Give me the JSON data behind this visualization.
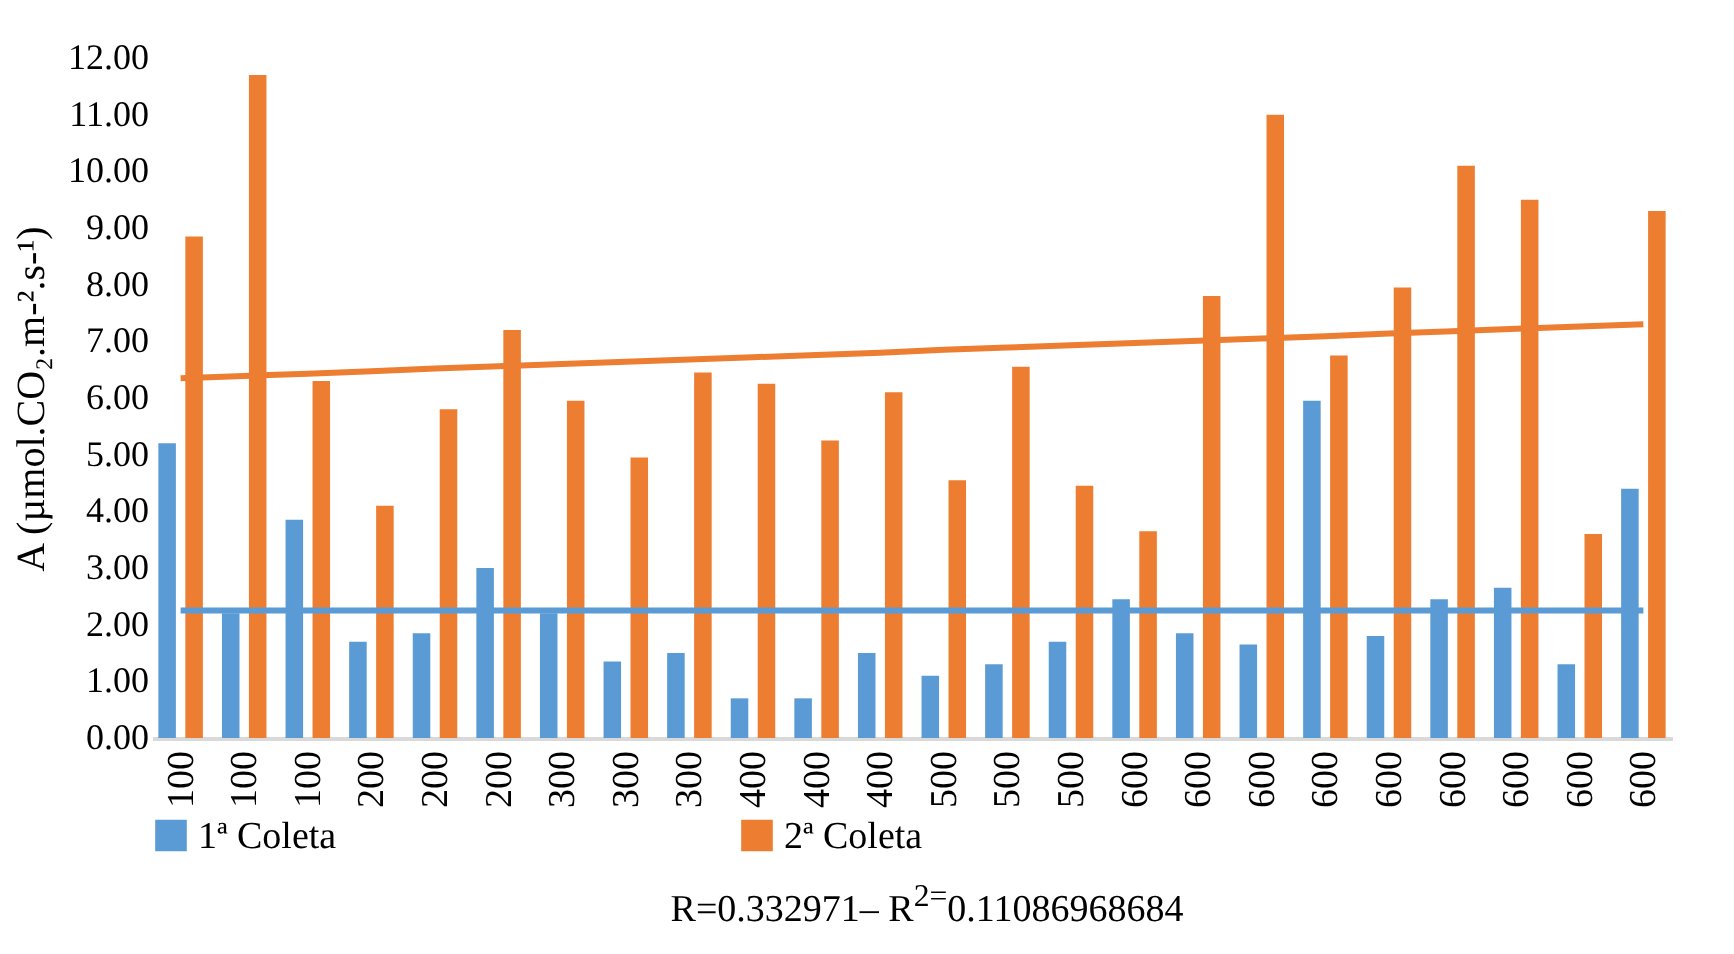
{
  "chart_data": {
    "type": "bar",
    "ylabel": "A (µmol.CO₂.m-².s-¹)",
    "categories": [
      "100",
      "100",
      "100",
      "200",
      "200",
      "200",
      "300",
      "300",
      "300",
      "400",
      "400",
      "400",
      "500",
      "500",
      "500",
      "600",
      "600",
      "600",
      "600",
      "600",
      "600",
      "600",
      "600",
      "600"
    ],
    "series": [
      {
        "name": "1ª Coleta",
        "color": "#5b9bd5",
        "values": [
          5.2,
          2.2,
          3.85,
          1.7,
          1.85,
          3.0,
          2.2,
          1.35,
          1.5,
          0.7,
          0.7,
          1.5,
          1.1,
          1.3,
          1.7,
          2.45,
          1.85,
          1.65,
          5.95,
          1.8,
          2.45,
          2.65,
          1.3,
          4.4
        ]
      },
      {
        "name": "2ª Coleta",
        "color": "#ed7d31",
        "values": [
          8.85,
          11.7,
          6.3,
          4.1,
          5.8,
          7.2,
          5.95,
          4.95,
          6.45,
          6.25,
          5.25,
          6.1,
          4.55,
          6.55,
          4.45,
          3.65,
          7.8,
          11.0,
          6.75,
          7.95,
          10.1,
          9.5,
          3.6,
          9.3
        ]
      },
      {
        "type": "line",
        "color": "#5b9bd5",
        "values": [
          2.25,
          2.25,
          2.25,
          2.25,
          2.25,
          2.25,
          2.25,
          2.25,
          2.25,
          2.25,
          2.25,
          2.25,
          2.25,
          2.25,
          2.25,
          2.25,
          2.25,
          2.25,
          2.25,
          2.25,
          2.25,
          2.25,
          2.25,
          2.25
        ]
      },
      {
        "type": "line",
        "color": "#ed7d31",
        "values": [
          6.35,
          6.39,
          6.43,
          6.47,
          6.52,
          6.56,
          6.6,
          6.64,
          6.68,
          6.72,
          6.76,
          6.8,
          6.85,
          6.89,
          6.93,
          6.97,
          7.01,
          7.05,
          7.09,
          7.14,
          7.18,
          7.22,
          7.26,
          7.3
        ]
      }
    ],
    "ylim": [
      0,
      12
    ],
    "yticks": [
      {
        "value": 0,
        "label": "0.00"
      },
      {
        "value": 1,
        "label": "1.00"
      },
      {
        "value": 2,
        "label": "2.00"
      },
      {
        "value": 3,
        "label": "3.00"
      },
      {
        "value": 4,
        "label": "4.00"
      },
      {
        "value": 5,
        "label": "5.00"
      },
      {
        "value": 6,
        "label": "6.00"
      },
      {
        "value": 7,
        "label": "7.00"
      },
      {
        "value": 8,
        "label": "8.00"
      },
      {
        "value": 9,
        "label": "9.00"
      },
      {
        "value": 10,
        "label": "10.00"
      },
      {
        "value": 11,
        "label": "11.00"
      },
      {
        "value": 12,
        "label": "12.00"
      }
    ],
    "legend": "bottom",
    "annotations": [
      "R=0.332971– R$^{2=}$0.11086968684"
    ]
  }
}
